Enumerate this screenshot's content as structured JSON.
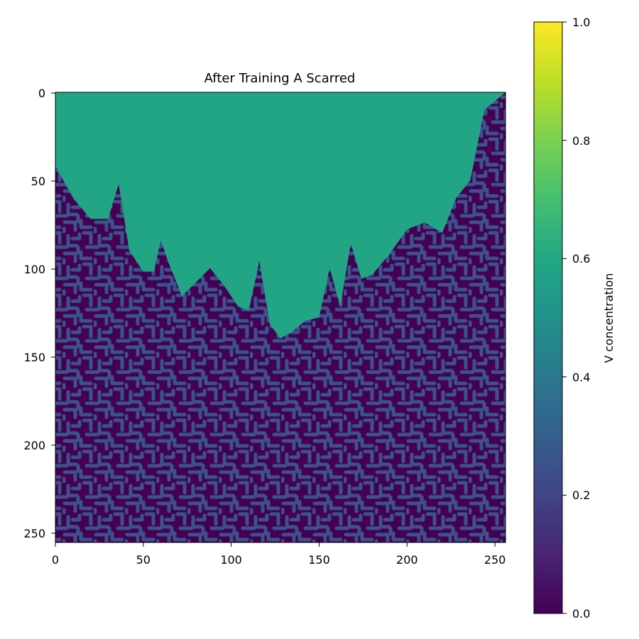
{
  "chart_data": {
    "type": "heatmap",
    "title": "After Training A Scarred",
    "xlabel": "",
    "ylabel": "",
    "xlim": [
      0,
      256
    ],
    "ylim": [
      256,
      0
    ],
    "x_ticks": [
      "0",
      "50",
      "100",
      "150",
      "200",
      "250"
    ],
    "y_ticks": [
      "0",
      "50",
      "100",
      "150",
      "200",
      "250"
    ],
    "colormap": "viridis",
    "colorbar": {
      "label": "V concentration",
      "range": [
        0.0,
        1.0
      ],
      "ticks": [
        "0.0",
        "0.2",
        "0.4",
        "0.6",
        "0.8",
        "1.0"
      ]
    },
    "regions": [
      {
        "region": "scarred-upper",
        "value": 0.6,
        "boundary_x": [
          0,
          10,
          20,
          30,
          36,
          42,
          50,
          56,
          60,
          64,
          72,
          80,
          88,
          96,
          104,
          110,
          116,
          122,
          128,
          135,
          142,
          150,
          156,
          162,
          168,
          174,
          180,
          190,
          200,
          210,
          220,
          228,
          236,
          244,
          256
        ],
        "boundary_y": [
          42,
          60,
          72,
          72,
          52,
          90,
          102,
          102,
          84,
          96,
          116,
          108,
          100,
          110,
          122,
          124,
          96,
          132,
          140,
          136,
          130,
          128,
          100,
          122,
          86,
          106,
          104,
          92,
          78,
          74,
          80,
          60,
          50,
          10,
          0
        ]
      },
      {
        "region": "turing-labyrinth",
        "value_range": [
          0.05,
          0.3
        ]
      }
    ]
  }
}
